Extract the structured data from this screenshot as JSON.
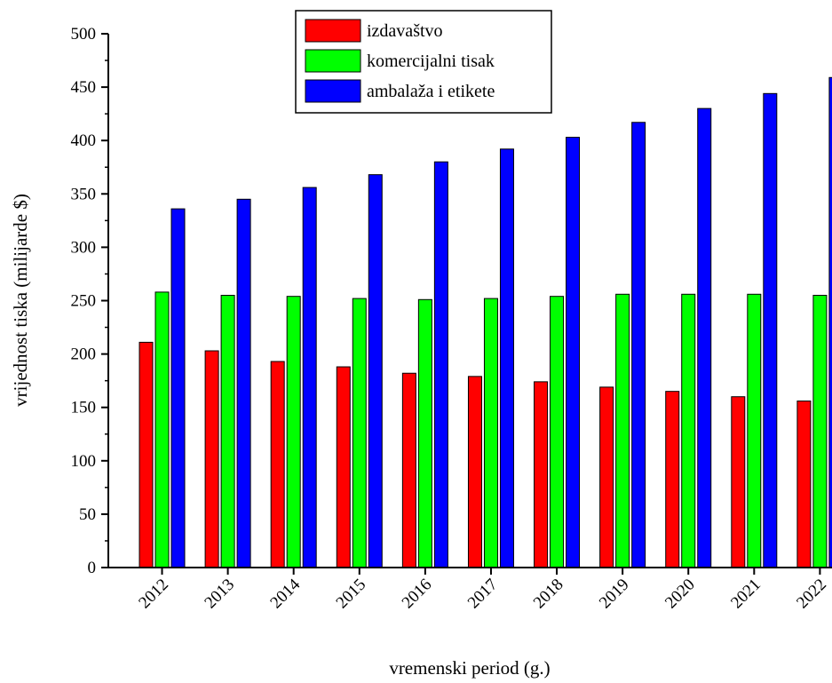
{
  "chart_data": {
    "type": "bar",
    "categories": [
      "2012",
      "2013",
      "2014",
      "2015",
      "2016",
      "2017",
      "2018",
      "2019",
      "2020",
      "2021",
      "2022"
    ],
    "series": [
      {
        "name": "izdavaštvo",
        "color": "#ff0000",
        "values": [
          211,
          203,
          193,
          188,
          182,
          179,
          174,
          169,
          165,
          160,
          156
        ]
      },
      {
        "name": "komercijalni tisak",
        "color": "#00ff00",
        "values": [
          258,
          255,
          254,
          252,
          251,
          252,
          254,
          256,
          256,
          256,
          255
        ]
      },
      {
        "name": "ambalaža i etikete",
        "color": "#0000ff",
        "values": [
          336,
          345,
          356,
          368,
          380,
          392,
          403,
          417,
          430,
          444,
          459
        ]
      }
    ],
    "xlabel": "vremenski period (g.)",
    "ylabel": "vrijednost tiska (milijarde $)",
    "ylim": [
      0,
      500
    ],
    "yticks": [
      0,
      50,
      100,
      150,
      200,
      250,
      300,
      350,
      400,
      450,
      500
    ],
    "grid": false,
    "legend_position": "top-center"
  }
}
